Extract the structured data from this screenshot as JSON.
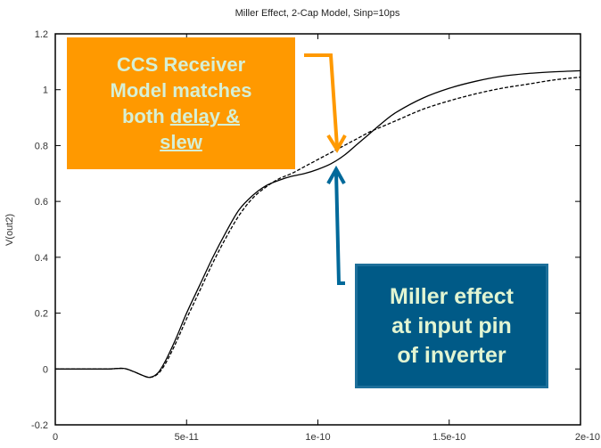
{
  "chart_data": {
    "type": "line",
    "title": "Miller Effect, 2-Cap Model, Sinp=10ps",
    "xlabel": "",
    "ylabel": "V(out2)",
    "xlim": [
      0,
      2e-10
    ],
    "ylim": [
      -0.2,
      1.2
    ],
    "x_ticks": [
      0,
      5e-11,
      1e-10,
      1.5e-10,
      2e-10
    ],
    "x_tick_labels": [
      "0",
      "5e-11",
      "1e-10",
      "1.5e-10",
      "2e-10"
    ],
    "y_ticks": [
      -0.2,
      0,
      0.2,
      0.4,
      0.6,
      0.8,
      1.0,
      1.2
    ],
    "y_tick_labels": [
      "-0.2",
      "0",
      "0.2",
      "0.4",
      "0.6",
      "0.8",
      "1",
      "1.2"
    ],
    "grid": false,
    "series": [
      {
        "name": "solid",
        "style": "solid",
        "color": "#000000",
        "x": [
          0,
          1e-11,
          2e-11,
          2.6e-11,
          3e-11,
          3.3e-11,
          3.6e-11,
          3.9e-11,
          4.2e-11,
          4.6e-11,
          5e-11,
          5.5e-11,
          6e-11,
          6.5e-11,
          7e-11,
          7.5e-11,
          8e-11,
          8.5e-11,
          9e-11,
          9.5e-11,
          1e-10,
          1.05e-10,
          1.1e-10,
          1.15e-10,
          1.2e-10,
          1.25e-10,
          1.3e-10,
          1.4e-10,
          1.5e-10,
          1.6e-10,
          1.7e-10,
          1.8e-10,
          1.9e-10,
          2e-10
        ],
        "y": [
          0.0,
          0.0,
          0.0,
          0.002,
          -0.01,
          -0.022,
          -0.03,
          -0.015,
          0.03,
          0.11,
          0.2,
          0.3,
          0.4,
          0.49,
          0.57,
          0.62,
          0.655,
          0.675,
          0.69,
          0.7,
          0.715,
          0.735,
          0.765,
          0.805,
          0.845,
          0.885,
          0.92,
          0.97,
          1.005,
          1.03,
          1.048,
          1.058,
          1.064,
          1.068
        ]
      },
      {
        "name": "dashed",
        "style": "dashed",
        "color": "#000000",
        "x": [
          0,
          1e-11,
          2e-11,
          2.6e-11,
          3e-11,
          3.3e-11,
          3.6e-11,
          3.9e-11,
          4.2e-11,
          4.6e-11,
          5e-11,
          5.5e-11,
          6e-11,
          6.5e-11,
          7e-11,
          7.5e-11,
          8e-11,
          8.5e-11,
          9e-11,
          9.5e-11,
          1e-10,
          1.05e-10,
          1.1e-10,
          1.15e-10,
          1.2e-10,
          1.25e-10,
          1.3e-10,
          1.4e-10,
          1.5e-10,
          1.6e-10,
          1.7e-10,
          1.8e-10,
          1.9e-10,
          2e-10
        ],
        "y": [
          0.0,
          0.0,
          0.0,
          0.002,
          -0.01,
          -0.022,
          -0.03,
          -0.018,
          0.02,
          0.095,
          0.18,
          0.28,
          0.38,
          0.47,
          0.55,
          0.61,
          0.65,
          0.68,
          0.7,
          0.725,
          0.75,
          0.775,
          0.8,
          0.825,
          0.85,
          0.87,
          0.89,
          0.93,
          0.96,
          0.985,
          1.005,
          1.02,
          1.035,
          1.045
        ]
      }
    ]
  },
  "annotations": [
    {
      "id": "ccs-receiver",
      "lines": [
        "CCS Receiver",
        "Model matches",
        "both "
      ],
      "underlined": [
        "delay &",
        "slew"
      ],
      "box_color": "#ff9900",
      "text_color": "#d6f0d6",
      "arrow_color": "#ff9900",
      "points_to": {
        "x": 1.08e-10,
        "y": 0.79
      }
    },
    {
      "id": "miller-effect",
      "lines": [
        "Miller effect",
        "at input pin",
        "of inverter"
      ],
      "box_color": "#005a87",
      "text_color": "#e2f5d2",
      "arrow_color": "#00699a",
      "points_to": {
        "x": 1.1e-10,
        "y": 0.73
      }
    }
  ]
}
